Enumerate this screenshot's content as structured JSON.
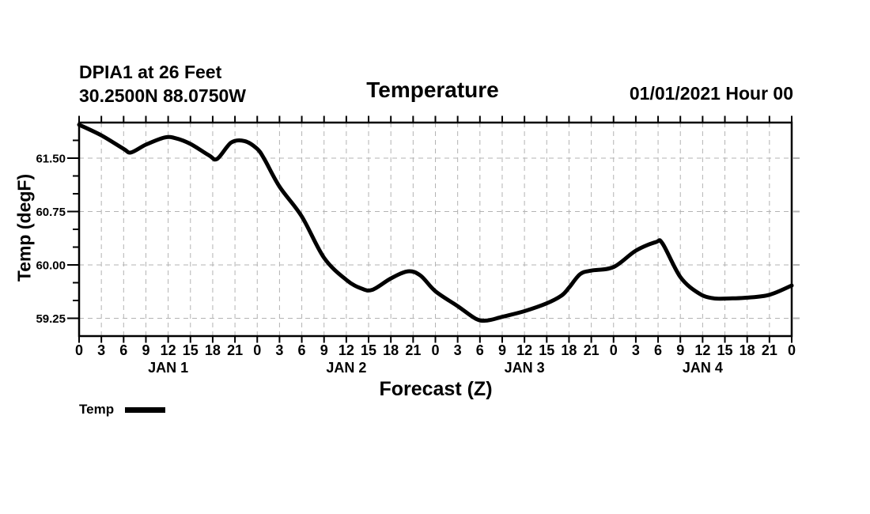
{
  "header": {
    "station": "DPIA1 at 26 Feet",
    "coords": "30.2500N 88.0750W",
    "title": "Temperature",
    "datetime": "01/01/2021 Hour 00"
  },
  "axes": {
    "ylabel": "Temp (degF)",
    "xlabel": "Forecast (Z)"
  },
  "legend": {
    "label": "Temp"
  },
  "colors": {
    "foreground": "#000000",
    "background": "#ffffff",
    "gridline": "#b3b3b3"
  },
  "chart_data": {
    "type": "line",
    "title": "Temperature",
    "xlabel": "Forecast (Z)",
    "ylabel": "Temp (degF)",
    "xlim": [
      0,
      96
    ],
    "ylim": [
      59.0,
      62.0
    ],
    "grid": "dashed",
    "legend_position": "bottom-left",
    "x_tick_step_hours": 3,
    "x_tick_labels": [
      "0",
      "3",
      "6",
      "9",
      "12",
      "15",
      "18",
      "21",
      "0",
      "3",
      "6",
      "9",
      "12",
      "15",
      "18",
      "21",
      "0",
      "3",
      "6",
      "9",
      "12",
      "15",
      "18",
      "21",
      "0",
      "3",
      "6",
      "9",
      "12",
      "15",
      "18",
      "21",
      "0"
    ],
    "day_labels": [
      {
        "label": "JAN 1",
        "hour": 12
      },
      {
        "label": "JAN 2",
        "hour": 36
      },
      {
        "label": "JAN 3",
        "hour": 60
      },
      {
        "label": "JAN 4",
        "hour": 84
      }
    ],
    "y_ticks": [
      {
        "value": 59.25,
        "label": "59.25"
      },
      {
        "value": 60.0,
        "label": "60.00"
      },
      {
        "value": 60.75,
        "label": "60.75"
      },
      {
        "value": 61.5,
        "label": "61.50"
      }
    ],
    "y_minor_step": 0.25,
    "series": [
      {
        "name": "Temp",
        "points": [
          [
            0,
            61.97
          ],
          [
            3,
            61.82
          ],
          [
            6,
            61.63
          ],
          [
            7,
            61.58
          ],
          [
            9,
            61.69
          ],
          [
            11.5,
            61.79
          ],
          [
            13,
            61.78
          ],
          [
            15,
            61.7
          ],
          [
            17.5,
            61.54
          ],
          [
            18.6,
            61.49
          ],
          [
            20.5,
            61.72
          ],
          [
            22.3,
            61.74
          ],
          [
            24,
            61.63
          ],
          [
            25,
            61.48
          ],
          [
            27,
            61.1
          ],
          [
            30,
            60.68
          ],
          [
            33,
            60.1
          ],
          [
            36,
            59.79
          ],
          [
            38,
            59.67
          ],
          [
            39.5,
            59.65
          ],
          [
            42,
            59.81
          ],
          [
            44.3,
            59.91
          ],
          [
            46,
            59.85
          ],
          [
            48,
            59.63
          ],
          [
            51,
            59.42
          ],
          [
            53.5,
            59.24
          ],
          [
            55,
            59.22
          ],
          [
            57,
            59.27
          ],
          [
            60,
            59.35
          ],
          [
            63,
            59.46
          ],
          [
            65,
            59.57
          ],
          [
            66,
            59.68
          ],
          [
            67.5,
            59.87
          ],
          [
            69,
            59.92
          ],
          [
            72,
            59.97
          ],
          [
            75,
            60.2
          ],
          [
            77.7,
            60.32
          ],
          [
            78.6,
            60.3
          ],
          [
            81,
            59.83
          ],
          [
            83.5,
            59.6
          ],
          [
            85.5,
            59.53
          ],
          [
            88,
            59.53
          ],
          [
            90,
            59.54
          ],
          [
            93,
            59.58
          ],
          [
            96,
            59.71
          ]
        ]
      }
    ]
  }
}
